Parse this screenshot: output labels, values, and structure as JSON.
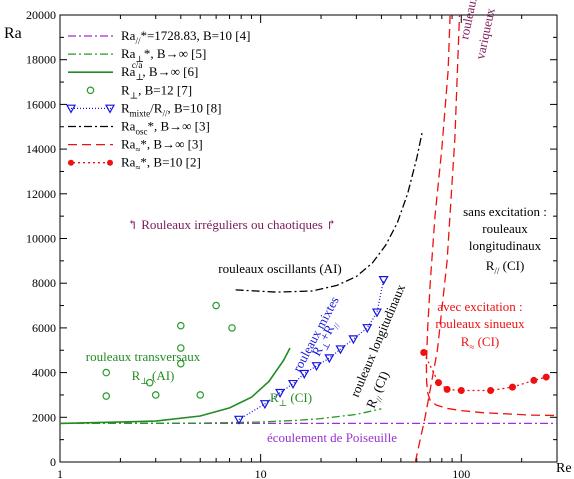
{
  "chart_data": {
    "type": "line",
    "xscale": "log",
    "xlim": [
      1,
      300
    ],
    "ylim": [
      0,
      20000
    ],
    "xlabel": "Re",
    "ylabel": "Ra",
    "x_ticks": [
      1,
      10,
      100
    ],
    "y_ticks": [
      0,
      2000,
      4000,
      6000,
      8000,
      10000,
      12000,
      14000,
      16000,
      18000,
      20000
    ],
    "grid": false,
    "legend_position": "top-left",
    "series": [
      {
        "id": "ra_par",
        "label_main": "Ra",
        "label_sub": "//",
        "label_rest": "*=1728.83, B=10 [4]",
        "color": "#9933cc",
        "style": "dashdot",
        "x": [
          1,
          300
        ],
        "y": [
          1728.83,
          1728.83
        ]
      },
      {
        "id": "ra_perp_inf",
        "label_main": "Ra",
        "label_sub": "⊥",
        "label_rest": "*, B→∞ [5]",
        "color": "#2a9a2a",
        "style": "dashdot",
        "x": [
          1,
          5,
          10,
          15,
          20,
          30,
          40
        ],
        "y": [
          1728,
          1740,
          1790,
          1860,
          1940,
          2130,
          2380
        ]
      },
      {
        "id": "ra_perp_ca",
        "label_main": "Ra",
        "label_sub": "⊥",
        "label_sup": "c/a",
        "label_rest": ", B→∞ [6]",
        "color": "#228b22",
        "style": "solid",
        "x": [
          1,
          3,
          5,
          7,
          9,
          11,
          13,
          14
        ],
        "y": [
          1728,
          1830,
          2060,
          2420,
          2900,
          3600,
          4540,
          5100
        ]
      },
      {
        "id": "r_perp_b12",
        "label_main": "R",
        "label_sub": "⊥",
        "label_rest": ", B=12 [7]",
        "color": "#2a9a2a",
        "style": "circles",
        "x": [
          1.7,
          1.7,
          2.8,
          3.0,
          4.0,
          4.0,
          4.0,
          5.0,
          6.0,
          7.2
        ],
        "y": [
          2950,
          4000,
          3550,
          3000,
          4400,
          5100,
          6100,
          3000,
          7000,
          6000
        ]
      },
      {
        "id": "r_mixte",
        "label_main": "R",
        "label_sub": "mixte",
        "label_rest2": "/R",
        "label_sub2": "//",
        "label_rest": ", B=10 [8]",
        "color": "#1515dd",
        "style": "dotted-triangles",
        "x": [
          7.8,
          10.5,
          12.5,
          14.5,
          16.5,
          19,
          22,
          25,
          29,
          34,
          38,
          41
        ],
        "y": [
          1900,
          2600,
          3100,
          3500,
          3950,
          4300,
          4650,
          5050,
          5500,
          6000,
          6700,
          8150
        ]
      },
      {
        "id": "ra_osc",
        "label_main": "Ra",
        "label_sub": "osc",
        "label_rest": "*, B→∞ [3]",
        "color": "#000000",
        "style": "dashdot",
        "x": [
          7.5,
          12,
          18,
          24,
          30,
          36,
          42,
          48,
          54,
          60,
          64
        ],
        "y": [
          7700,
          7600,
          7650,
          7900,
          8300,
          8900,
          9700,
          10700,
          12000,
          13600,
          14800
        ]
      },
      {
        "id": "ra_approx_inf",
        "label_main": "Ra",
        "label_sub": "≈",
        "label_rest": "*, B→∞ [3]",
        "color": "#ee1111",
        "style": "dashed",
        "x": [
          88,
          86,
          80,
          74,
          70,
          68,
          67,
          67.2,
          68,
          70,
          75,
          85,
          100,
          130,
          170,
          220,
          300
        ],
        "y": [
          20000,
          17500,
          14000,
          11000,
          8000,
          6000,
          4400,
          3600,
          3100,
          2750,
          2550,
          2400,
          2300,
          2200,
          2150,
          2100,
          2080
        ]
      },
      {
        "id": "ra_approx_b10",
        "label_main": "Ra",
        "label_sub": "≈",
        "label_rest": "*, B=10 [2]",
        "color": "#ee1111",
        "style": "dotted-circles",
        "x": [
          65,
          77,
          85,
          100,
          140,
          180,
          230,
          265
        ],
        "y": [
          4900,
          3550,
          3250,
          3200,
          3200,
          3350,
          3650,
          3800
        ]
      },
      {
        "id": "longitudinal",
        "color": "#ee1111",
        "style": "dashed",
        "x": [
          59,
          66,
          76,
          85,
          93,
          98
        ],
        "y": [
          0,
          2000,
          5000,
          9000,
          14500,
          20000
        ]
      }
    ],
    "annotations": [
      {
        "id": "rouleaux-varqueux",
        "text": "rouleaux",
        "color": "#7a1a5a"
      },
      {
        "id": "rouleaux-varqueux-2",
        "text": "variqueux",
        "color": "#7a1a5a"
      },
      {
        "id": "irreguliers",
        "text": "↰ Rouleaux irréguliers ou chaotiques ↱",
        "color": "#7a1a5a"
      },
      {
        "id": "sans-excitation-1",
        "text": "sans excitation :",
        "color": "#000000"
      },
      {
        "id": "sans-excitation-2",
        "text": "rouleaux",
        "color": "#000000"
      },
      {
        "id": "sans-excitation-3",
        "text": "longitudinaux",
        "color": "#000000"
      },
      {
        "id": "sans-excitation-4",
        "text": "R",
        "sub": "//",
        "rest": " (CI)",
        "color": "#000000"
      },
      {
        "id": "oscillants",
        "text": "rouleaux oscillants (AI)",
        "color": "#000000"
      },
      {
        "id": "mixtes",
        "text": "rouleaux mixtes",
        "color": "#1515dd"
      },
      {
        "id": "mixtes-r",
        "text": "R",
        "sub": "⊥",
        "rest": "+R",
        "sub2": "//",
        "color": "#1515dd"
      },
      {
        "id": "longitudinaux",
        "text": "rouleaux longitudinaux",
        "color": "#000000"
      },
      {
        "id": "longitudinaux-r",
        "text": "R",
        "sub": "//",
        "rest": " (CI)",
        "color": "#000000"
      },
      {
        "id": "avec-excitation-1",
        "text": "avec excitation :",
        "color": "#ee1111"
      },
      {
        "id": "avec-excitation-2",
        "text": "rouleaux sinueux",
        "color": "#ee1111"
      },
      {
        "id": "avec-excitation-3",
        "text": "R",
        "sub": "≈",
        "rest": " (CI)",
        "color": "#ee1111"
      },
      {
        "id": "transversaux-1",
        "text": "rouleaux transversaux",
        "color": "#228b22"
      },
      {
        "id": "transversaux-2",
        "text": "R",
        "sub": "⊥",
        "rest": " (AI)",
        "color": "#228b22"
      },
      {
        "id": "r-perp-ci",
        "text": "R",
        "sub": "⊥",
        "rest": " (CI)",
        "color": "#228b22"
      },
      {
        "id": "poiseuille",
        "text": "écoulement de Poiseuille",
        "color": "#9933cc"
      }
    ]
  }
}
